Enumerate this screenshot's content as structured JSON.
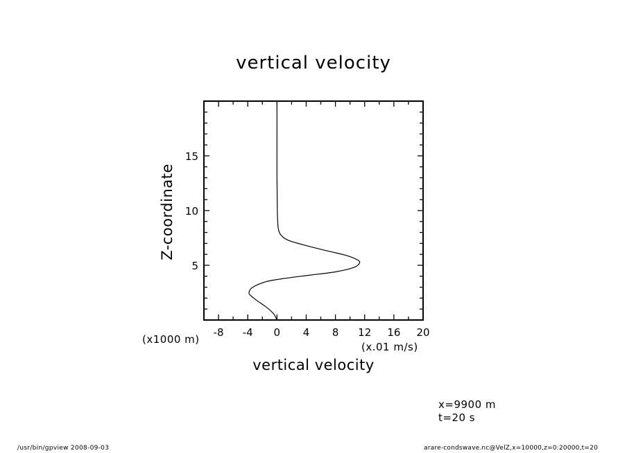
{
  "chart_data": {
    "type": "line",
    "title": "vertical velocity",
    "xlabel": "vertical velocity",
    "ylabel": "Z-coordinate",
    "x_units": "(x.01 m/s)",
    "y_scale_label": "(x1000 m)",
    "xlim": [
      -10,
      20
    ],
    "ylim": [
      0,
      20
    ],
    "x_ticks": [
      "-8",
      "-4",
      "0",
      "4",
      "8",
      "12",
      "16",
      "20"
    ],
    "x_tick_values": [
      -8,
      -4,
      0,
      4,
      8,
      12,
      16,
      20
    ],
    "y_ticks": [
      "5",
      "10",
      "15"
    ],
    "y_tick_values": [
      5,
      10,
      15
    ],
    "grid": false,
    "series": [
      {
        "x": [
          0.0,
          -0.5,
          -1.5,
          -2.8,
          -3.7,
          -3.8,
          -3.3,
          -1.5,
          1.0,
          4.5,
          8.0,
          10.5,
          11.3,
          11.0,
          9.5,
          7.0,
          4.0,
          1.5,
          0.5,
          0.2,
          0.1,
          0.05,
          0.0,
          0.0,
          0.0
        ],
        "y": [
          0.0,
          0.6,
          1.2,
          1.8,
          2.3,
          2.6,
          3.0,
          3.5,
          3.8,
          4.1,
          4.4,
          4.8,
          5.2,
          5.5,
          5.9,
          6.3,
          6.8,
          7.3,
          7.8,
          8.3,
          9.0,
          10.0,
          13.0,
          17.0,
          19.5
        ]
      }
    ]
  },
  "info": {
    "x_position": "x=9900  m",
    "time": "t=20 s"
  },
  "footer": {
    "left": "/usr/bin/gpview   2008-09-03",
    "right": "arare-condswave.nc@VelZ,x=10000,z=0:20000,t=20"
  }
}
